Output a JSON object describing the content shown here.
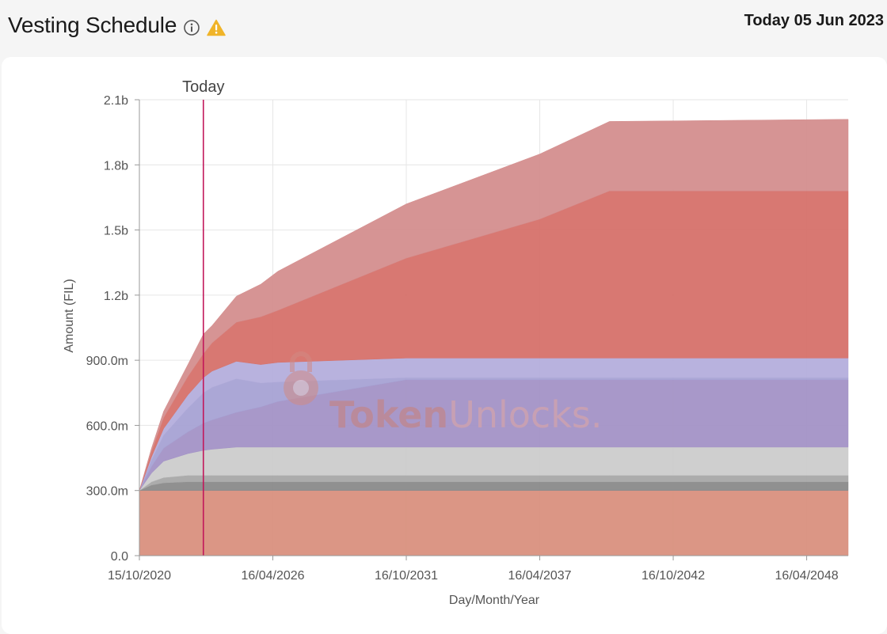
{
  "header": {
    "title": "Vesting Schedule",
    "today_label": "Today 05 Jun 2023",
    "info_icon": "info-circle-icon",
    "warning_icon": "warning-triangle-icon",
    "warning_color": "#f0b429"
  },
  "watermark": {
    "brand_bold": "Token",
    "brand_light": "Unlocks."
  },
  "chart_data": {
    "type": "area",
    "stacked": true,
    "title": "",
    "xlabel": "Day/Month/Year",
    "ylabel": "Amount (FIL)",
    "xlim": [
      "2020-10-15",
      "2050-01-01"
    ],
    "ylim": [
      0,
      2100000000
    ],
    "x_ticks": [
      "15/10/2020",
      "16/04/2026",
      "16/10/2031",
      "16/04/2037",
      "16/10/2042",
      "16/04/2048"
    ],
    "x_tick_dates": [
      "2020-10-15",
      "2026-04-16",
      "2031-10-16",
      "2037-04-16",
      "2042-10-16",
      "2048-04-16"
    ],
    "y_ticks": [
      "0.0",
      "300.0m",
      "600.0m",
      "900.0m",
      "1.2b",
      "1.5b",
      "1.8b",
      "2.1b"
    ],
    "y_tick_values": [
      0,
      300000000,
      600000000,
      900000000,
      1200000000,
      1500000000,
      1800000000,
      2100000000
    ],
    "grid": true,
    "today_marker": {
      "label": "Today",
      "date": "2023-06-05",
      "color": "#c2185b"
    },
    "x": [
      "2020-10-15",
      "2021-04-15",
      "2021-10-15",
      "2022-10-15",
      "2023-06-05",
      "2023-10-15",
      "2024-10-15",
      "2025-10-15",
      "2026-07-01",
      "2031-10-15",
      "2037-04-15",
      "2040-03-01",
      "2050-01-01"
    ],
    "series": [
      {
        "color": "#d9907e",
        "values": [
          300000000,
          300000000,
          300000000,
          300000000,
          300000000,
          300000000,
          300000000,
          300000000,
          300000000,
          300000000,
          300000000,
          300000000,
          300000000
        ]
      },
      {
        "color": "#8a8a8a",
        "values": [
          0,
          25000000,
          35000000,
          40000000,
          40000000,
          40000000,
          40000000,
          40000000,
          40000000,
          40000000,
          40000000,
          40000000,
          40000000
        ]
      },
      {
        "color": "#a8a8a8",
        "values": [
          0,
          15000000,
          25000000,
          30000000,
          30000000,
          30000000,
          30000000,
          30000000,
          30000000,
          30000000,
          30000000,
          30000000,
          30000000
        ]
      },
      {
        "color": "#cccccc",
        "values": [
          0,
          40000000,
          75000000,
          100000000,
          115000000,
          120000000,
          130000000,
          130000000,
          130000000,
          130000000,
          130000000,
          130000000,
          130000000
        ]
      },
      {
        "color": "#a392c6",
        "values": [
          0,
          30000000,
          60000000,
          100000000,
          125000000,
          135000000,
          160000000,
          185000000,
          210000000,
          310000000,
          310000000,
          310000000,
          310000000
        ]
      },
      {
        "color": "#a6a2d4",
        "values": [
          0,
          30000000,
          60000000,
          110000000,
          140000000,
          150000000,
          155000000,
          110000000,
          90000000,
          10000000,
          10000000,
          10000000,
          10000000
        ]
      },
      {
        "color": "#b4aedc",
        "values": [
          0,
          15000000,
          30000000,
          60000000,
          70000000,
          75000000,
          80000000,
          85000000,
          90000000,
          90000000,
          90000000,
          90000000,
          90000000
        ]
      },
      {
        "color": "#d6716a",
        "values": [
          0,
          25000000,
          50000000,
          85000000,
          110000000,
          130000000,
          180000000,
          220000000,
          240000000,
          460000000,
          640000000,
          770000000,
          770000000
        ]
      },
      {
        "color": "#d48e8e",
        "values": [
          0,
          15000000,
          30000000,
          55000000,
          90000000,
          80000000,
          120000000,
          150000000,
          180000000,
          250000000,
          300000000,
          320000000,
          330000000
        ]
      }
    ]
  }
}
